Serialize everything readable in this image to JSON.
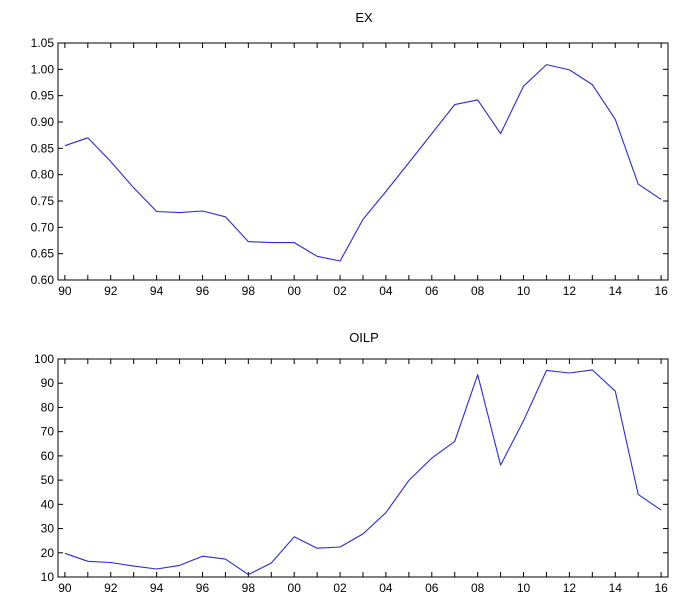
{
  "chart_data": [
    {
      "type": "line",
      "title": "EX",
      "xlabel": "",
      "ylabel": "",
      "x": [
        1990,
        1991,
        1992,
        1993,
        1994,
        1995,
        1996,
        1997,
        1998,
        1999,
        2000,
        2001,
        2002,
        2003,
        2004,
        2005,
        2006,
        2007,
        2008,
        2009,
        2010,
        2011,
        2012,
        2013,
        2014,
        2015,
        2016
      ],
      "values": [
        0.855,
        0.87,
        0.825,
        0.775,
        0.73,
        0.728,
        0.731,
        0.72,
        0.673,
        0.671,
        0.671,
        0.645,
        0.636,
        0.715,
        0.768,
        0.823,
        0.878,
        0.933,
        0.942,
        0.878,
        0.968,
        1.009,
        0.999,
        0.971,
        0.905,
        0.782,
        0.753
      ],
      "ylim": [
        0.6,
        1.05
      ],
      "xlim": [
        1989.7,
        2016.3
      ],
      "yticks": [
        "0.60",
        "0.65",
        "0.70",
        "0.75",
        "0.80",
        "0.85",
        "0.90",
        "0.95",
        "1.00",
        "1.05"
      ],
      "xticks": [
        "90",
        "92",
        "94",
        "96",
        "98",
        "00",
        "02",
        "04",
        "06",
        "08",
        "10",
        "12",
        "14",
        "16"
      ],
      "line_color": "#2b2bd0",
      "grid": false,
      "legend": "none"
    },
    {
      "type": "line",
      "title": "OILP",
      "xlabel": "",
      "ylabel": "",
      "x": [
        1990,
        1991,
        1992,
        1993,
        1994,
        1995,
        1996,
        1997,
        1998,
        1999,
        2000,
        2001,
        2002,
        2003,
        2004,
        2005,
        2006,
        2007,
        2008,
        2009,
        2010,
        2011,
        2012,
        2013,
        2014,
        2015,
        2016
      ],
      "values": [
        19.8,
        16.5,
        16.0,
        14.5,
        13.3,
        14.8,
        18.6,
        17.4,
        11.0,
        15.8,
        26.6,
        21.9,
        22.4,
        27.8,
        36.6,
        49.9,
        59.1,
        66.0,
        93.5,
        56.2,
        74.5,
        95.3,
        94.2,
        95.5,
        86.7,
        44.1,
        37.6
      ],
      "ylim": [
        10,
        100
      ],
      "xlim": [
        1989.7,
        2016.3
      ],
      "yticks": [
        "10",
        "20",
        "30",
        "40",
        "50",
        "60",
        "70",
        "80",
        "90",
        "100"
      ],
      "xticks": [
        "90",
        "92",
        "94",
        "96",
        "98",
        "00",
        "02",
        "04",
        "06",
        "08",
        "10",
        "12",
        "14",
        "16"
      ],
      "line_color": "#2b2bd0",
      "grid": false,
      "legend": "none"
    }
  ]
}
